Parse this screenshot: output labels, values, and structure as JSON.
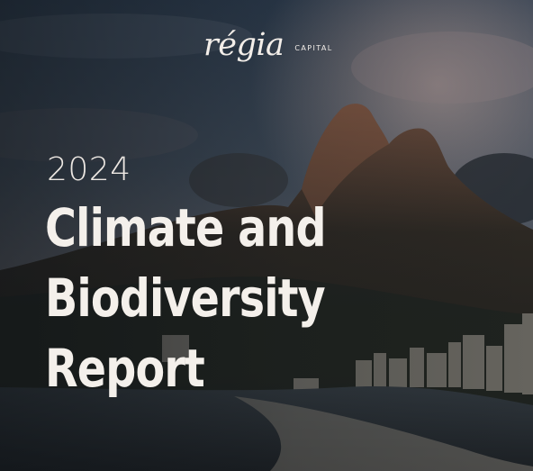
{
  "brand": {
    "name": "régia",
    "sub": "CAPITAL"
  },
  "year": "2024",
  "title_lines": [
    "Climate and",
    "Biodiversity",
    "Report"
  ]
}
